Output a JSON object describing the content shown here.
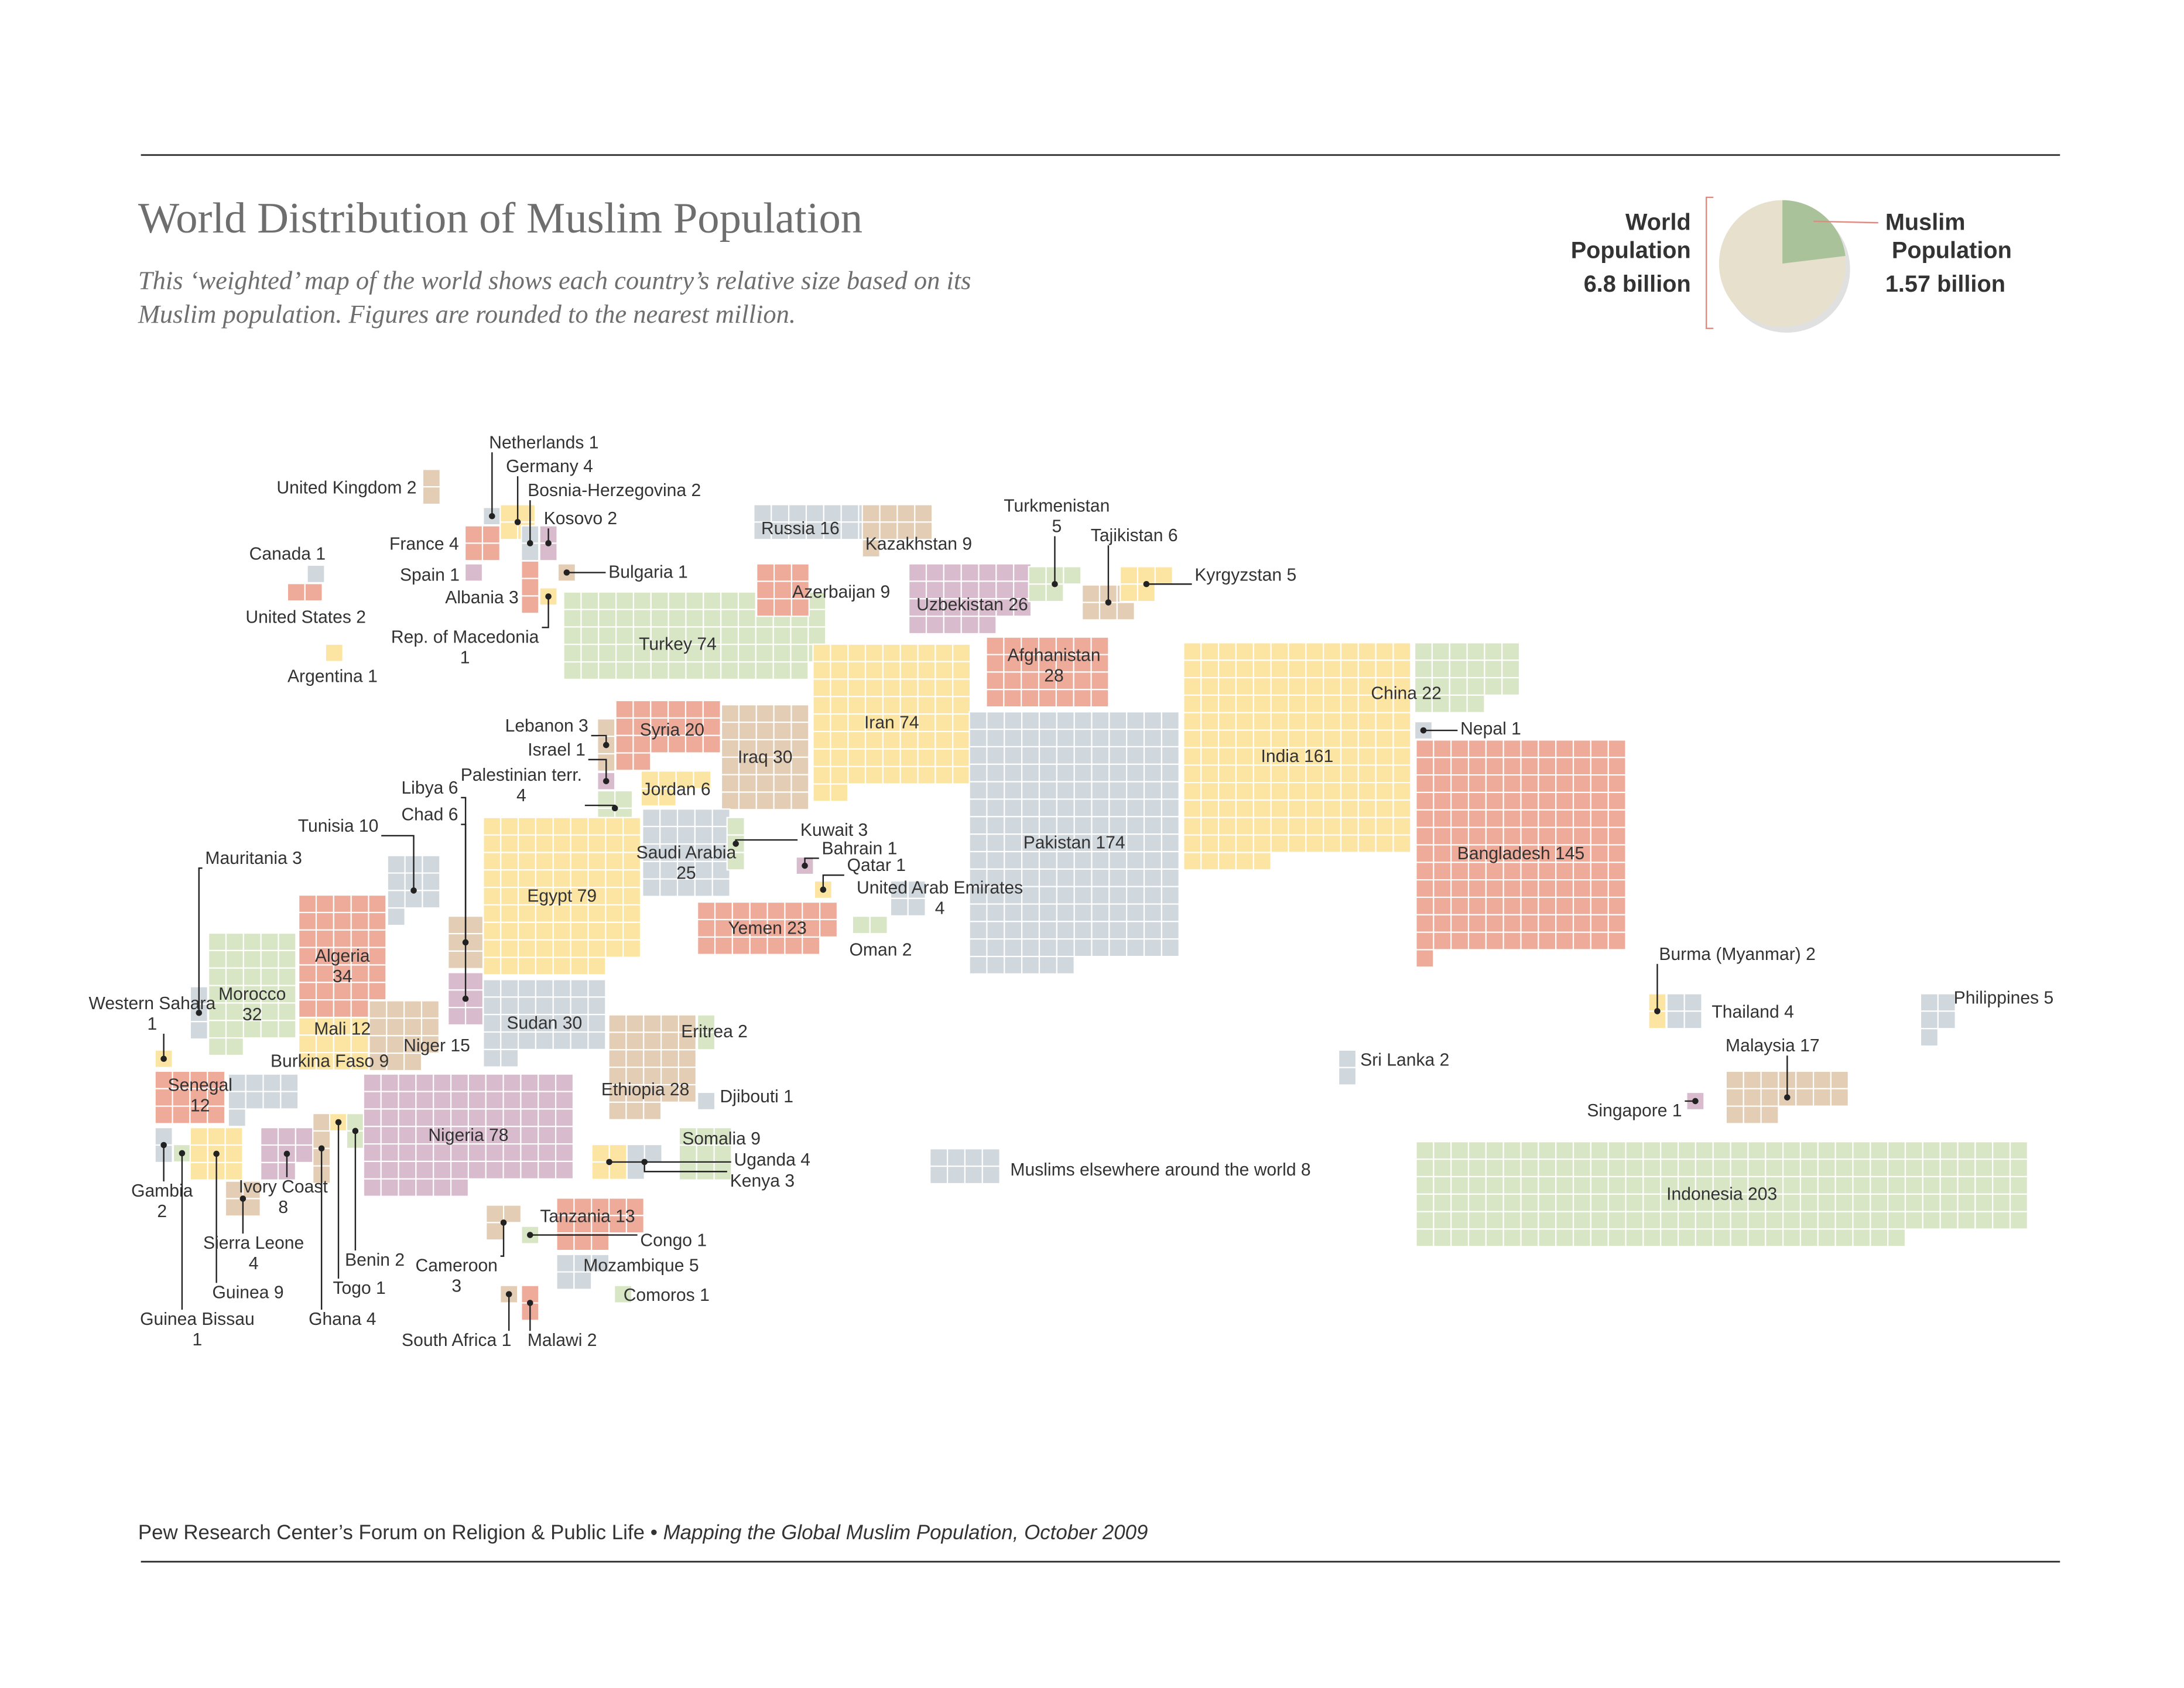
{
  "header": {
    "title": "World Distribution of Muslim Population",
    "subtitle_lines": [
      "This ‘weighted’ map of the world shows each country’s relative size based on its",
      "Muslim population. Figures are rounded to the nearest million."
    ]
  },
  "pie": {
    "slices": [
      {
        "name": "World Population",
        "value": 6.8,
        "value_label": "6.8 billion",
        "color": "#e7e0cd"
      },
      {
        "name": "Muslim Population",
        "value": 1.57,
        "value_label": "1.57 billion",
        "color": "#a9c29a"
      }
    ]
  },
  "countries": [
    {
      "name": "Canada",
      "value": 1,
      "color": "#d0d7dd"
    },
    {
      "name": "United States",
      "value": 2,
      "color": "#eeab9a"
    },
    {
      "name": "Argentina",
      "value": 1,
      "color": "#fce5a3"
    },
    {
      "name": "United Kingdom",
      "value": 2,
      "color": "#e3cdb5"
    },
    {
      "name": "Netherlands",
      "value": 1,
      "color": "#d0d7dd"
    },
    {
      "name": "Germany",
      "value": 4,
      "color": "#fce5a3"
    },
    {
      "name": "France",
      "value": 4,
      "color": "#eeab9a"
    },
    {
      "name": "Spain",
      "value": 1,
      "color": "#d8bccd"
    },
    {
      "name": "Bosnia-Herzegovina",
      "value": 2,
      "color": "#d0d7dd"
    },
    {
      "name": "Kosovo",
      "value": 2,
      "color": "#d8bccd"
    },
    {
      "name": "Albania",
      "value": 3,
      "color": "#eeab9a"
    },
    {
      "name": "Bulgaria",
      "value": 1,
      "color": "#e3cdb5"
    },
    {
      "name": "Rep. of Macedonia",
      "value": 1,
      "color": "#fce5a3"
    },
    {
      "name": "Turkey",
      "value": 74,
      "color": "#d9e6c6"
    },
    {
      "name": "Russia",
      "value": 16,
      "color": "#d0d7dd"
    },
    {
      "name": "Kazakhstan",
      "value": 9,
      "color": "#e3cdb5"
    },
    {
      "name": "Azerbaijan",
      "value": 9,
      "color": "#eeab9a"
    },
    {
      "name": "Uzbekistan",
      "value": 26,
      "color": "#d8bccd"
    },
    {
      "name": "Turkmenistan",
      "value": 5,
      "color": "#d9e6c6"
    },
    {
      "name": "Tajikistan",
      "value": 6,
      "color": "#e3cdb5"
    },
    {
      "name": "Kyrgyzstan",
      "value": 5,
      "color": "#fce5a3"
    },
    {
      "name": "Afghanistan",
      "value": 28,
      "color": "#eeab9a"
    },
    {
      "name": "Iran",
      "value": 74,
      "color": "#fce5a3"
    },
    {
      "name": "Iraq",
      "value": 30,
      "color": "#e3cdb5"
    },
    {
      "name": "Syria",
      "value": 20,
      "color": "#eeab9a"
    },
    {
      "name": "Pakistan",
      "value": 174,
      "color": "#d0d7dd"
    },
    {
      "name": "India",
      "value": 161,
      "color": "#fce5a3"
    },
    {
      "name": "China",
      "value": 22,
      "color": "#d9e6c6"
    },
    {
      "name": "Nepal",
      "value": 1,
      "color": "#d0d7dd"
    },
    {
      "name": "Bangladesh",
      "value": 145,
      "color": "#eeab9a"
    },
    {
      "name": "Lebanon",
      "value": 3,
      "color": "#e3cdb5"
    },
    {
      "name": "Israel",
      "value": 1,
      "color": "#d8bccd"
    },
    {
      "name": "Palestinian terr.",
      "value": 4,
      "color": "#d9e6c6"
    },
    {
      "name": "Jordan",
      "value": 6,
      "color": "#fce5a3"
    },
    {
      "name": "Saudi Arabia",
      "value": 25,
      "color": "#d0d7dd"
    },
    {
      "name": "Kuwait",
      "value": 3,
      "color": "#d9e6c6"
    },
    {
      "name": "Bahrain",
      "value": 1,
      "color": "#d8bccd"
    },
    {
      "name": "Qatar",
      "value": 1,
      "color": "#fce5a3"
    },
    {
      "name": "United Arab Emirates",
      "value": 4,
      "color": "#d0d7dd"
    },
    {
      "name": "Oman",
      "value": 2,
      "color": "#d9e6c6"
    },
    {
      "name": "Yemen",
      "value": 23,
      "color": "#eeab9a"
    },
    {
      "name": "Egypt",
      "value": 79,
      "color": "#fce5a3"
    },
    {
      "name": "Libya",
      "value": 6,
      "color": "#e3cdb5"
    },
    {
      "name": "Chad",
      "value": 6,
      "color": "#d8bccd"
    },
    {
      "name": "Tunisia",
      "value": 10,
      "color": "#d0d7dd"
    },
    {
      "name": "Algeria",
      "value": 34,
      "color": "#eeab9a"
    },
    {
      "name": "Morocco",
      "value": 32,
      "color": "#d9e6c6"
    },
    {
      "name": "Mauritania",
      "value": 3,
      "color": "#d0d7dd"
    },
    {
      "name": "Western Sahara",
      "value": 1,
      "color": "#fce5a3"
    },
    {
      "name": "Mali",
      "value": 12,
      "color": "#fce5a3"
    },
    {
      "name": "Burkina Faso",
      "value": 9,
      "color": "#d0d7dd"
    },
    {
      "name": "Niger",
      "value": 15,
      "color": "#e3cdb5"
    },
    {
      "name": "Sudan",
      "value": 30,
      "color": "#d0d7dd"
    },
    {
      "name": "Eritrea",
      "value": 2,
      "color": "#d9e6c6"
    },
    {
      "name": "Ethiopia",
      "value": 28,
      "color": "#e3cdb5"
    },
    {
      "name": "Djibouti",
      "value": 1,
      "color": "#d0d7dd"
    },
    {
      "name": "Somalia",
      "value": 9,
      "color": "#d9e6c6"
    },
    {
      "name": "Senegal",
      "value": 12,
      "color": "#eeab9a"
    },
    {
      "name": "Gambia",
      "value": 2,
      "color": "#d0d7dd"
    },
    {
      "name": "Guinea Bissau",
      "value": 1,
      "color": "#d9e6c6"
    },
    {
      "name": "Guinea",
      "value": 9,
      "color": "#fce5a3"
    },
    {
      "name": "Sierra Leone",
      "value": 4,
      "color": "#e3cdb5"
    },
    {
      "name": "Ivory Coast",
      "value": 8,
      "color": "#d8bccd"
    },
    {
      "name": "Ghana",
      "value": 4,
      "color": "#e3cdb5"
    },
    {
      "name": "Togo",
      "value": 1,
      "color": "#fce5a3"
    },
    {
      "name": "Benin",
      "value": 2,
      "color": "#d9e6c6"
    },
    {
      "name": "Nigeria",
      "value": 78,
      "color": "#d8bccd"
    },
    {
      "name": "Uganda",
      "value": 4,
      "color": "#fce5a3"
    },
    {
      "name": "Kenya",
      "value": 3,
      "color": "#d0d7dd"
    },
    {
      "name": "Tanzania",
      "value": 13,
      "color": "#eeab9a"
    },
    {
      "name": "Congo",
      "value": 1,
      "color": "#d9e6c6"
    },
    {
      "name": "Cameroon",
      "value": 3,
      "color": "#e3cdb5"
    },
    {
      "name": "Mozambique",
      "value": 5,
      "color": "#d0d7dd"
    },
    {
      "name": "Comoros",
      "value": 1,
      "color": "#d9e6c6"
    },
    {
      "name": "South Africa",
      "value": 1,
      "color": "#e3cdb5"
    },
    {
      "name": "Malawi",
      "value": 2,
      "color": "#eeab9a"
    },
    {
      "name": "Sri Lanka",
      "value": 2,
      "color": "#d0d7dd"
    },
    {
      "name": "Burma (Myanmar)",
      "value": 2,
      "color": "#fce5a3"
    },
    {
      "name": "Thailand",
      "value": 4,
      "color": "#d0d7dd"
    },
    {
      "name": "Malaysia",
      "value": 17,
      "color": "#e3cdb5"
    },
    {
      "name": "Singapore",
      "value": 1,
      "color": "#d8bccd"
    },
    {
      "name": "Indonesia",
      "value": 203,
      "color": "#d9e6c6"
    },
    {
      "name": "Philippines",
      "value": 5,
      "color": "#d0d7dd"
    },
    {
      "name": "Muslims elsewhere around the world",
      "value": 8,
      "color": "#d0d7dd"
    }
  ],
  "footer": {
    "source": "Pew Research Center’s Forum on Religion & Public Life • ",
    "publication": "Mapping the Global Muslim Population, October 2009"
  }
}
